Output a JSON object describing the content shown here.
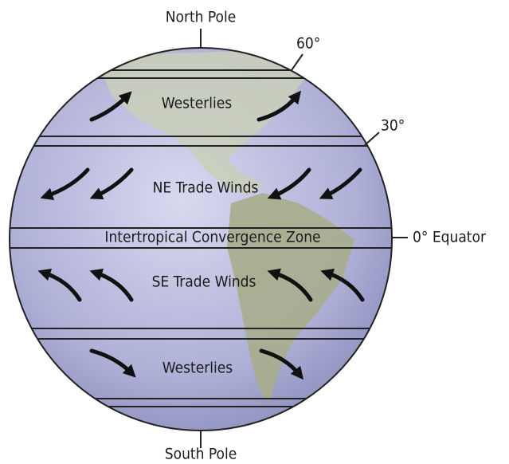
{
  "labels": {
    "north_pole": "North Pole",
    "south_pole": "South Pole",
    "lat_60": "60°",
    "lat_30": "30°",
    "equator": "0° Equator"
  },
  "zones": [
    "Westerlies",
    "NE Trade Winds",
    "Intertropical Convergence Zone",
    "SE Trade Winds",
    "Westerlies"
  ]
}
